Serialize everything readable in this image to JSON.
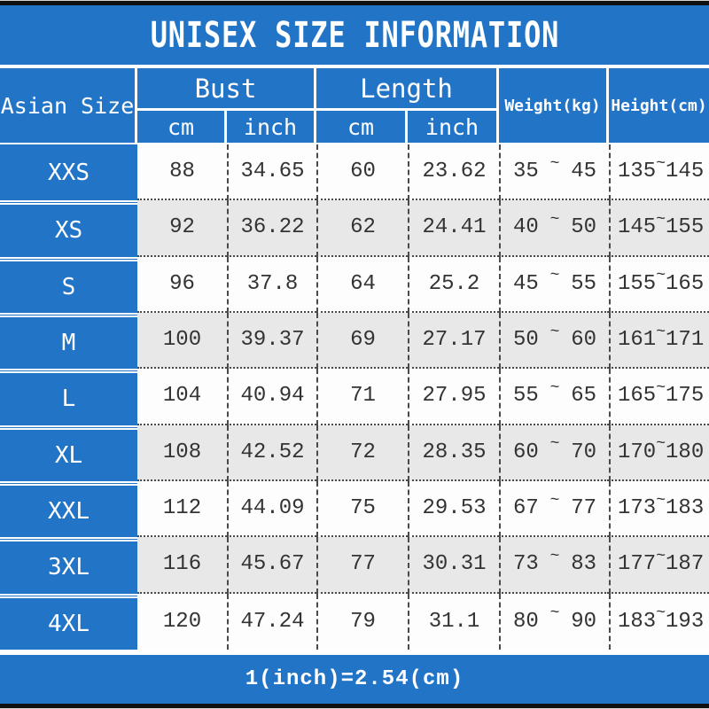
{
  "title": "UNISEX SIZE INFORMATION",
  "footer_note": "1(inch)=2.54(cm)",
  "colors": {
    "blue": "#2274c6",
    "black_bar": "#101010",
    "alt_row_gray": "#e8e8e8",
    "data_text": "#333333"
  },
  "header": {
    "size_col": "Asian Size",
    "bust": "Bust",
    "length": "Length",
    "cm": "cm",
    "inch": "inch",
    "weight": "Weight(kg)",
    "height": "Height(cm)",
    "tilde": "~"
  },
  "chart_data": {
    "type": "table",
    "title": "UNISEX SIZE INFORMATION",
    "columns": [
      "Asian Size",
      "Bust cm",
      "Bust inch",
      "Length cm",
      "Length inch",
      "Weight(kg) min",
      "Weight(kg) max",
      "Height(cm) min",
      "Height(cm) max"
    ],
    "rows": [
      [
        "XXS",
        88,
        34.65,
        60,
        23.62,
        35,
        45,
        135,
        145
      ],
      [
        "XS",
        92,
        36.22,
        62,
        24.41,
        40,
        50,
        145,
        155
      ],
      [
        "S",
        96,
        37.8,
        64,
        25.2,
        45,
        55,
        155,
        165
      ],
      [
        "M",
        100,
        39.37,
        69,
        27.17,
        50,
        60,
        161,
        171
      ],
      [
        "L",
        104,
        40.94,
        71,
        27.95,
        55,
        65,
        165,
        175
      ],
      [
        "XL",
        108,
        42.52,
        72,
        28.35,
        60,
        70,
        170,
        180
      ],
      [
        "XXL",
        112,
        44.09,
        75,
        29.53,
        67,
        77,
        173,
        183
      ],
      [
        "3XL",
        116,
        45.67,
        77,
        30.31,
        73,
        83,
        177,
        187
      ],
      [
        "4XL",
        120,
        47.24,
        79,
        31.1,
        80,
        90,
        183,
        193
      ]
    ],
    "note": "1(inch)=2.54(cm)"
  }
}
